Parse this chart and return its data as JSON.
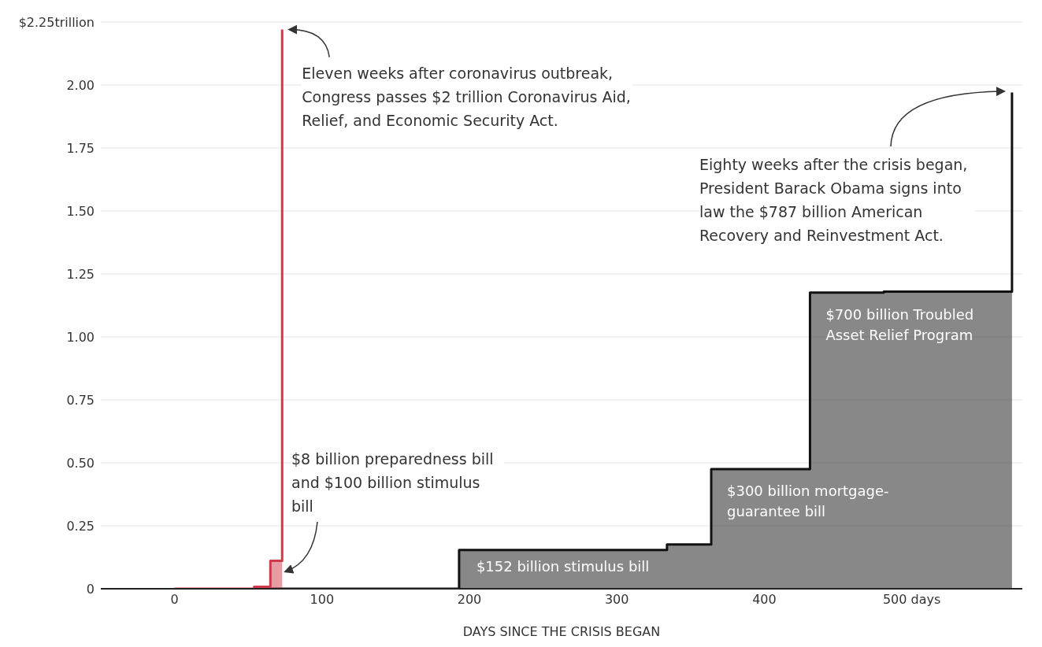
{
  "chart_data": {
    "type": "area",
    "xlabel": "DAYS SINCE THE CRISIS BEGAN",
    "series": [
      {
        "color": "#111111",
        "x": [
          56,
          193,
          334,
          364,
          431,
          481,
          568
        ],
        "values": [
          0,
          0.154,
          0.176,
          0.475,
          1.176,
          1.18,
          1.97
        ]
      },
      {
        "color": "#d0394a",
        "x": [
          0,
          54,
          65,
          73
        ],
        "values": [
          0,
          0.008,
          0.111,
          2.22
        ]
      }
    ],
    "xlim": [
      -50,
      575
    ],
    "xticks": [
      0,
      100,
      200,
      300,
      400,
      {
        "value": 500,
        "label": "500 days"
      }
    ],
    "ylim": [
      0,
      2.25
    ],
    "yticks": [
      0,
      0.25,
      {
        "value": 0.5,
        "label": "0.50"
      },
      0.75,
      {
        "value": 1,
        "label": "1.00"
      },
      1.25,
      {
        "value": 1.5,
        "label": "1.50"
      },
      1.75,
      {
        "value": 2,
        "label": "2.00"
      },
      {
        "value": 2.25,
        "label": "$2.25trillion"
      }
    ],
    "grid": "y",
    "annotations": [
      {
        "text": "Eleven weeks after coronavirus outbreak, Congress passes $2 trillion Coronavirus Aid, Relief, and Economic Security Act.",
        "x": 73,
        "y": 2.22
      },
      "$8 billion preparedness bill and $100 billion stimulus bill",
      "Eighty weeks after the crisis began, President Barack Obama signs into law the $787 billion American Recovery and Reinvestment Act.",
      {
        "text": "$152 billion stimulus bill",
        "x": 193,
        "y": 0.154
      },
      {
        "text": "$300 billion mortgage-guarantee bill",
        "x": 364,
        "y": 0.475
      },
      {
        "text": "$700 billion Troubled Asset Relief Program",
        "x": 431,
        "y": 1.176
      }
    ]
  }
}
